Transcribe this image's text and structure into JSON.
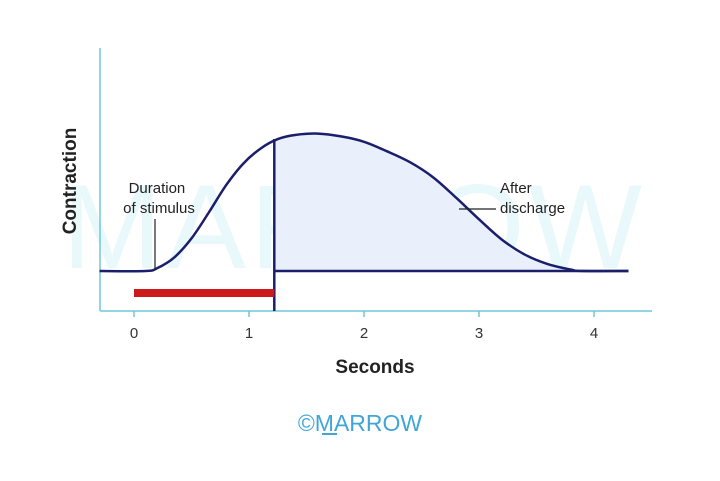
{
  "chart_data": {
    "type": "line",
    "xlabel": "Seconds",
    "ylabel": "Contraction",
    "x_ticks": [
      "0",
      "1",
      "2",
      "3",
      "4"
    ],
    "xlim": [
      -0.3,
      4.6
    ],
    "ylim": [
      0,
      1.2
    ],
    "series": [
      {
        "x": [
          -0.3,
          0.1,
          0.2,
          0.35,
          0.5,
          0.65,
          0.8,
          0.95,
          1.1,
          1.25,
          1.4,
          1.6,
          1.8,
          2.0,
          2.2,
          2.4,
          2.6,
          2.8,
          3.0,
          3.2,
          3.4,
          3.6,
          3.8,
          3.9,
          4.3
        ],
        "y": [
          0.0,
          0.0,
          0.02,
          0.1,
          0.24,
          0.43,
          0.63,
          0.79,
          0.9,
          0.97,
          1.0,
          1.01,
          0.99,
          0.95,
          0.88,
          0.8,
          0.69,
          0.54,
          0.38,
          0.23,
          0.12,
          0.05,
          0.01,
          0.0,
          0.0
        ]
      }
    ],
    "stimulus": {
      "start": 0.0,
      "end": 1.22
    },
    "shaded_region": {
      "from_x": 1.22,
      "label": "After discharge"
    },
    "annotations": [
      {
        "lines": [
          "Duration",
          "of stimulus"
        ]
      },
      {
        "lines": [
          "After",
          "discharge"
        ]
      }
    ],
    "colors": {
      "curve": "#1b1f6b",
      "fill": "#e9f0fb",
      "stimulus_bar": "#cc1a1a",
      "axis": "#6fc8d8"
    }
  },
  "watermark": {
    "background_text": "MARROW",
    "logo_text": "©MARROW"
  }
}
